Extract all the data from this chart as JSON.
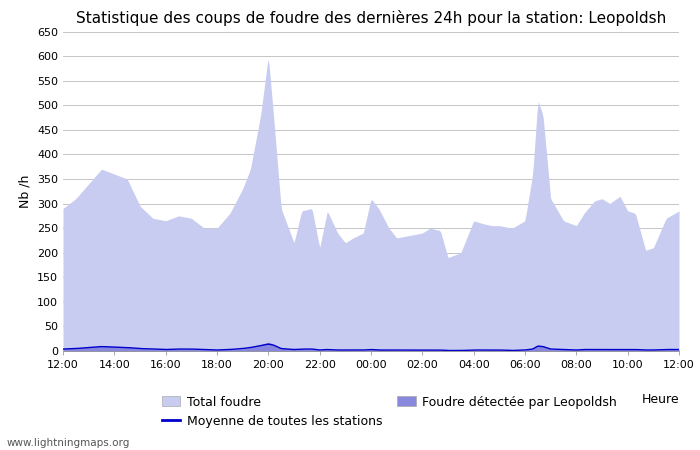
{
  "title": "Statistique des coups de foudre des dernières 24h pour la station: Leopoldsh",
  "ylabel": "Nb /h",
  "xlabel_right": "Heure",
  "watermark": "www.lightningmaps.org",
  "ylim": [
    0,
    650
  ],
  "yticks": [
    0,
    50,
    100,
    150,
    200,
    250,
    300,
    350,
    400,
    450,
    500,
    550,
    600,
    650
  ],
  "xtick_labels": [
    "12:00",
    "14:00",
    "16:00",
    "18:00",
    "20:00",
    "22:00",
    "00:00",
    "02:00",
    "04:00",
    "06:00",
    "08:00",
    "10:00",
    "12:00"
  ],
  "fill_color_total": "#c8ccf0",
  "fill_color_local": "#8888dd",
  "line_color_moyenne": "#0000cc",
  "background_color": "#ffffff",
  "grid_color": "#bbbbbb",
  "title_fontsize": 11,
  "axis_fontsize": 9,
  "tick_fontsize": 8,
  "legend_fontsize": 9
}
